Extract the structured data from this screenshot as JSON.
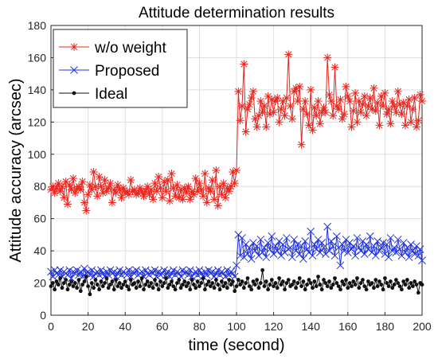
{
  "chart_data": {
    "type": "line",
    "title": "Attitude determination results",
    "xlabel": "time (second)",
    "ylabel": "Attitude accuracy (arcsec)",
    "xlim": [
      0,
      200
    ],
    "ylim": [
      0,
      180
    ],
    "xticks": [
      0,
      20,
      40,
      60,
      80,
      100,
      120,
      140,
      160,
      180,
      200
    ],
    "yticks": [
      0,
      20,
      40,
      60,
      80,
      100,
      120,
      140,
      160,
      180
    ],
    "grid": true,
    "legend_position": "top-left",
    "series": [
      {
        "name": "w/o weight",
        "color": "#e8251e",
        "marker": "asterisk",
        "x": [
          0,
          1,
          2,
          3,
          4,
          5,
          6,
          7,
          8,
          9,
          10,
          11,
          12,
          13,
          14,
          15,
          16,
          17,
          18,
          19,
          20,
          21,
          22,
          23,
          24,
          25,
          26,
          27,
          28,
          29,
          30,
          31,
          32,
          33,
          34,
          35,
          36,
          37,
          38,
          39,
          40,
          41,
          42,
          43,
          44,
          45,
          46,
          47,
          48,
          49,
          50,
          51,
          52,
          53,
          54,
          55,
          56,
          57,
          58,
          59,
          60,
          61,
          62,
          63,
          64,
          65,
          66,
          67,
          68,
          69,
          70,
          71,
          72,
          73,
          74,
          75,
          76,
          77,
          78,
          79,
          80,
          81,
          82,
          83,
          84,
          85,
          86,
          87,
          88,
          89,
          90,
          91,
          92,
          93,
          94,
          95,
          96,
          97,
          98,
          99,
          100,
          101,
          102,
          103,
          104,
          105,
          106,
          107,
          108,
          109,
          110,
          111,
          112,
          113,
          114,
          115,
          116,
          117,
          118,
          119,
          120,
          121,
          122,
          123,
          124,
          125,
          126,
          127,
          128,
          129,
          130,
          131,
          132,
          133,
          134,
          135,
          136,
          137,
          138,
          139,
          140,
          141,
          142,
          143,
          144,
          145,
          146,
          147,
          148,
          149,
          150,
          151,
          152,
          153,
          154,
          155,
          156,
          157,
          158,
          159,
          160,
          161,
          162,
          163,
          164,
          165,
          166,
          167,
          168,
          169,
          170,
          171,
          172,
          173,
          174,
          175,
          176,
          177,
          178,
          179,
          180,
          181,
          182,
          183,
          184,
          185,
          186,
          187,
          188,
          189,
          190,
          191,
          192,
          193,
          194,
          195,
          196,
          197,
          198,
          199,
          200
        ],
        "values": [
          78,
          80,
          76,
          79,
          82,
          77,
          80,
          73,
          83,
          69,
          81,
          78,
          85,
          76,
          79,
          80,
          78,
          83,
          70,
          65,
          75,
          81,
          78,
          89,
          80,
          74,
          86,
          80,
          76,
          84,
          77,
          79,
          82,
          70,
          78,
          76,
          81,
          78,
          73,
          79,
          76,
          77,
          75,
          84,
          77,
          78,
          75,
          76,
          79,
          77,
          74,
          77,
          80,
          75,
          78,
          72,
          82,
          77,
          86,
          79,
          73,
          83,
          77,
          84,
          71,
          88,
          79,
          74,
          81,
          73,
          78,
          72,
          79,
          76,
          80,
          72,
          77,
          75,
          85,
          77,
          82,
          78,
          74,
          88,
          70,
          79,
          77,
          84,
          72,
          90,
          68,
          80,
          75,
          82,
          73,
          79,
          77,
          80,
          89,
          82,
          90,
          139,
          121,
          130,
          156,
          114,
          128,
          131,
          135,
          139,
          122,
          117,
          124,
          133,
          126,
          130,
          117,
          136,
          125,
          134,
          126,
          133,
          135,
          120,
          128,
          133,
          124,
          135,
          162,
          130,
          122,
          139,
          141,
          133,
          142,
          106,
          128,
          133,
          125,
          118,
          140,
          115,
          129,
          124,
          133,
          119,
          126,
          129,
          126,
          160,
          137,
          133,
          124,
          154,
          130,
          128,
          134,
          122,
          125,
          142,
          136,
          133,
          117,
          127,
          138,
          120,
          133,
          126,
          131,
          136,
          124,
          130,
          135,
          128,
          141,
          127,
          132,
          118,
          136,
          130,
          138,
          125,
          128,
          119,
          133,
          130,
          126,
          139,
          131,
          125,
          132,
          118,
          130,
          134,
          120,
          128,
          135,
          117,
          121,
          137,
          133
        ]
      },
      {
        "name": "Proposed",
        "color": "#2233e0",
        "marker": "x",
        "x": [
          0,
          1,
          2,
          3,
          4,
          5,
          6,
          7,
          8,
          9,
          10,
          11,
          12,
          13,
          14,
          15,
          16,
          17,
          18,
          19,
          20,
          21,
          22,
          23,
          24,
          25,
          26,
          27,
          28,
          29,
          30,
          31,
          32,
          33,
          34,
          35,
          36,
          37,
          38,
          39,
          40,
          41,
          42,
          43,
          44,
          45,
          46,
          47,
          48,
          49,
          50,
          51,
          52,
          53,
          54,
          55,
          56,
          57,
          58,
          59,
          60,
          61,
          62,
          63,
          64,
          65,
          66,
          67,
          68,
          69,
          70,
          71,
          72,
          73,
          74,
          75,
          76,
          77,
          78,
          79,
          80,
          81,
          82,
          83,
          84,
          85,
          86,
          87,
          88,
          89,
          90,
          91,
          92,
          93,
          94,
          95,
          96,
          97,
          98,
          99,
          100,
          101,
          102,
          103,
          104,
          105,
          106,
          107,
          108,
          109,
          110,
          111,
          112,
          113,
          114,
          115,
          116,
          117,
          118,
          119,
          120,
          121,
          122,
          123,
          124,
          125,
          126,
          127,
          128,
          129,
          130,
          131,
          132,
          133,
          134,
          135,
          136,
          137,
          138,
          139,
          140,
          141,
          142,
          143,
          144,
          145,
          146,
          147,
          148,
          149,
          150,
          151,
          152,
          153,
          154,
          155,
          156,
          157,
          158,
          159,
          160,
          161,
          162,
          163,
          164,
          165,
          166,
          167,
          168,
          169,
          170,
          171,
          172,
          173,
          174,
          175,
          176,
          177,
          178,
          179,
          180,
          181,
          182,
          183,
          184,
          185,
          186,
          187,
          188,
          189,
          190,
          191,
          192,
          193,
          194,
          195,
          196,
          197,
          198,
          199,
          200
        ],
        "values": [
          27,
          24,
          28,
          26,
          25,
          28,
          24,
          27,
          26,
          25,
          28,
          23,
          27,
          26,
          28,
          25,
          27,
          24,
          29,
          26,
          27,
          25,
          28,
          24,
          26,
          27,
          25,
          28,
          26,
          24,
          27,
          25,
          28,
          26,
          27,
          24,
          26,
          28,
          25,
          27,
          26,
          25,
          28,
          24,
          27,
          26,
          28,
          25,
          26,
          27,
          24,
          28,
          26,
          25,
          27,
          26,
          28,
          24,
          27,
          25,
          26,
          28,
          25,
          27,
          24,
          26,
          28,
          25,
          27,
          26,
          24,
          28,
          26,
          27,
          25,
          28,
          24,
          26,
          27,
          25,
          28,
          26,
          24,
          27,
          25,
          28,
          26,
          27,
          24,
          26,
          28,
          25,
          27,
          26,
          24,
          28,
          25,
          27,
          26,
          24,
          31,
          50,
          37,
          48,
          36,
          44,
          38,
          42,
          35,
          45,
          40,
          43,
          37,
          47,
          39,
          42,
          36,
          45,
          41,
          49,
          38,
          43,
          40,
          46,
          37,
          44,
          39,
          48,
          41,
          42,
          36,
          47,
          40,
          44,
          38,
          43,
          35,
          46,
          41,
          39,
          52,
          37,
          44,
          41,
          47,
          39,
          45,
          42,
          38,
          55,
          40,
          46,
          43,
          37,
          49,
          42,
          31,
          44,
          40,
          47,
          39,
          45,
          41,
          43,
          37,
          48,
          42,
          40,
          46,
          38,
          44,
          41,
          49,
          39,
          43,
          37,
          46,
          40,
          42,
          45,
          38,
          44,
          36,
          48,
          40,
          42,
          39,
          47,
          41,
          37,
          45,
          39,
          42,
          36,
          44,
          40,
          38,
          43,
          37,
          41,
          34
        ]
      },
      {
        "name": "Ideal",
        "color": "#111111",
        "marker": "dot",
        "x": [
          0,
          1,
          2,
          3,
          4,
          5,
          6,
          7,
          8,
          9,
          10,
          11,
          12,
          13,
          14,
          15,
          16,
          17,
          18,
          19,
          20,
          21,
          22,
          23,
          24,
          25,
          26,
          27,
          28,
          29,
          30,
          31,
          32,
          33,
          34,
          35,
          36,
          37,
          38,
          39,
          40,
          41,
          42,
          43,
          44,
          45,
          46,
          47,
          48,
          49,
          50,
          51,
          52,
          53,
          54,
          55,
          56,
          57,
          58,
          59,
          60,
          61,
          62,
          63,
          64,
          65,
          66,
          67,
          68,
          69,
          70,
          71,
          72,
          73,
          74,
          75,
          76,
          77,
          78,
          79,
          80,
          81,
          82,
          83,
          84,
          85,
          86,
          87,
          88,
          89,
          90,
          91,
          92,
          93,
          94,
          95,
          96,
          97,
          98,
          99,
          100,
          101,
          102,
          103,
          104,
          105,
          106,
          107,
          108,
          109,
          110,
          111,
          112,
          113,
          114,
          115,
          116,
          117,
          118,
          119,
          120,
          121,
          122,
          123,
          124,
          125,
          126,
          127,
          128,
          129,
          130,
          131,
          132,
          133,
          134,
          135,
          136,
          137,
          138,
          139,
          140,
          141,
          142,
          143,
          144,
          145,
          146,
          147,
          148,
          149,
          150,
          151,
          152,
          153,
          154,
          155,
          156,
          157,
          158,
          159,
          160,
          161,
          162,
          163,
          164,
          165,
          166,
          167,
          168,
          169,
          170,
          171,
          172,
          173,
          174,
          175,
          176,
          177,
          178,
          179,
          180,
          181,
          182,
          183,
          184,
          185,
          186,
          187,
          188,
          189,
          190,
          191,
          192,
          193,
          194,
          195,
          196,
          197,
          198,
          199,
          200
        ],
        "values": [
          18,
          20,
          16,
          21,
          19,
          23,
          17,
          20,
          22,
          16,
          19,
          21,
          18,
          20,
          17,
          22,
          15,
          19,
          21,
          24,
          18,
          13,
          20,
          17,
          22,
          19,
          16,
          21,
          18,
          20,
          23,
          17,
          19,
          21,
          16,
          22,
          18,
          20,
          17,
          19,
          21,
          18,
          16,
          22,
          19,
          20,
          17,
          21,
          18,
          23,
          16,
          19,
          21,
          18,
          20,
          17,
          22,
          19,
          16,
          21,
          18,
          20,
          23,
          17,
          19,
          21,
          18,
          16,
          20,
          22,
          17,
          19,
          21,
          18,
          20,
          16,
          22,
          19,
          17,
          21,
          18,
          20,
          23,
          16,
          19,
          21,
          18,
          20,
          17,
          22,
          19,
          16,
          21,
          18,
          20,
          17,
          22,
          19,
          21,
          15,
          18,
          22,
          19,
          21,
          17,
          20,
          23,
          18,
          16,
          21,
          19,
          22,
          17,
          20,
          28,
          18,
          21,
          16,
          19,
          22,
          18,
          20,
          17,
          23,
          19,
          21,
          16,
          20,
          22,
          18,
          19,
          21,
          17,
          20,
          23,
          18,
          21,
          16,
          19,
          22,
          20,
          17,
          21,
          18,
          24,
          19,
          16,
          22,
          20,
          18,
          21,
          17,
          19,
          23,
          20,
          18,
          16,
          21,
          19,
          22,
          17,
          20,
          18,
          21,
          19,
          23,
          17,
          20,
          22,
          18,
          16,
          21,
          19,
          20,
          17,
          22,
          18,
          21,
          19,
          16,
          23,
          20,
          18,
          21,
          17,
          19,
          22,
          20,
          18,
          16,
          21,
          19,
          22,
          17,
          20,
          18,
          21,
          19,
          14,
          20,
          19
        ]
      }
    ]
  }
}
